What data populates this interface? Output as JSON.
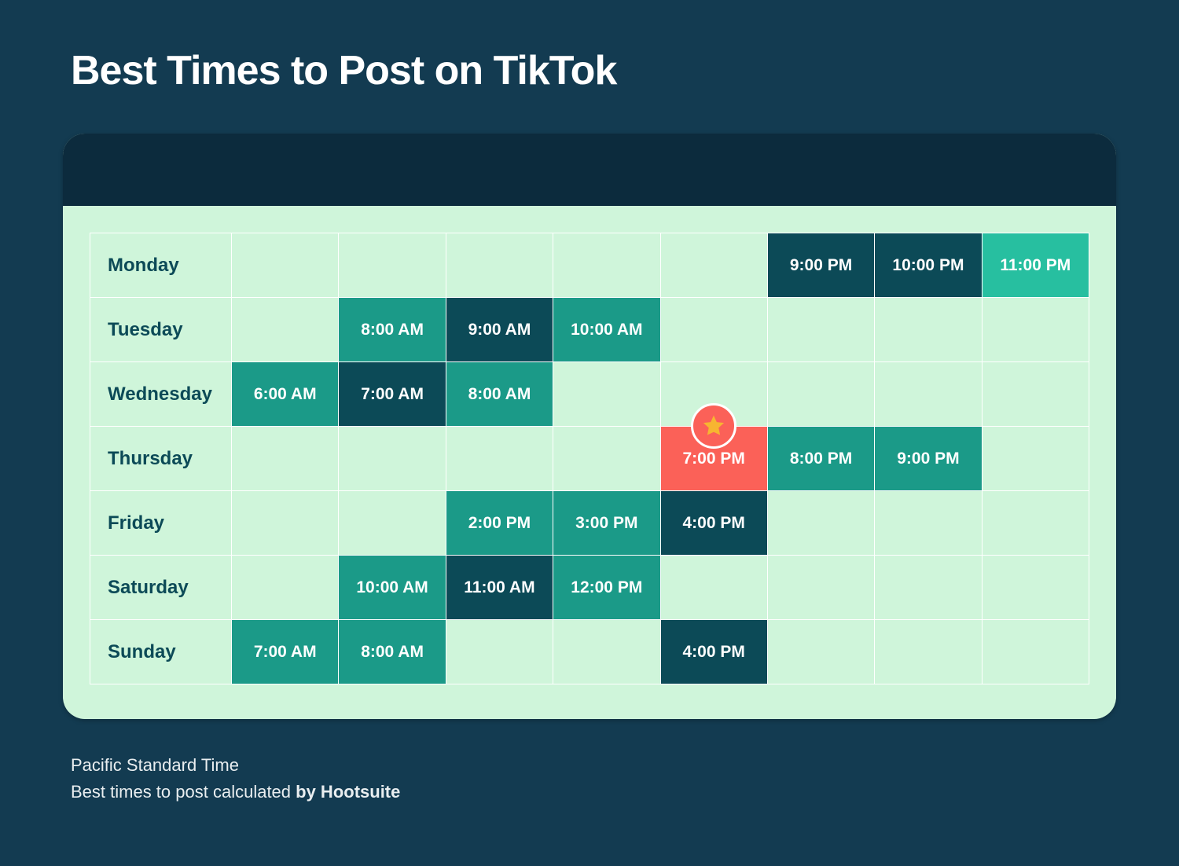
{
  "title": "Best Times to Post on TikTok",
  "footer": {
    "line1": "Pacific Standard Time",
    "line2_prefix": "Best times to post calculated ",
    "line2_strong": "by Hootsuite"
  },
  "colors": {
    "page_bg": "#133b51",
    "card_bg": "#cff5da",
    "card_band": "#0c2b3d",
    "grid_line": "#ffffff",
    "day_text": "#0c4a57",
    "time_text": "#ffffff",
    "cell_teal": "#1b9a88",
    "cell_navy": "#0c4a57",
    "cell_mint": "#27bfa0",
    "cell_highlight": "#fb6158",
    "star_fill": "#f7b531",
    "star_badge_bg": "#fb6158",
    "star_badge_border": "#ffffff",
    "footer_text": "#e9eef0",
    "title_text": "#ffffff"
  },
  "schedule": {
    "type": "table",
    "columns": 8,
    "days": [
      {
        "name": "Monday",
        "cells": [
          null,
          null,
          null,
          null,
          null,
          {
            "time": "9:00 PM",
            "fill": "cell_navy"
          },
          {
            "time": "10:00 PM",
            "fill": "cell_navy"
          },
          {
            "time": "11:00 PM",
            "fill": "cell_mint"
          }
        ]
      },
      {
        "name": "Tuesday",
        "cells": [
          null,
          {
            "time": "8:00 AM",
            "fill": "cell_teal"
          },
          {
            "time": "9:00 AM",
            "fill": "cell_navy"
          },
          {
            "time": "10:00 AM",
            "fill": "cell_teal"
          },
          null,
          null,
          null,
          null
        ]
      },
      {
        "name": "Wednesday",
        "cells": [
          {
            "time": "6:00 AM",
            "fill": "cell_teal"
          },
          {
            "time": "7:00 AM",
            "fill": "cell_navy"
          },
          {
            "time": "8:00 AM",
            "fill": "cell_teal"
          },
          null,
          null,
          null,
          null,
          null
        ]
      },
      {
        "name": "Thursday",
        "cells": [
          null,
          null,
          null,
          null,
          {
            "time": "7:00 PM",
            "fill": "cell_highlight",
            "star": true
          },
          {
            "time": "8:00 PM",
            "fill": "cell_teal"
          },
          {
            "time": "9:00 PM",
            "fill": "cell_teal"
          },
          null
        ]
      },
      {
        "name": "Friday",
        "cells": [
          null,
          null,
          {
            "time": "2:00 PM",
            "fill": "cell_teal"
          },
          {
            "time": "3:00 PM",
            "fill": "cell_teal"
          },
          {
            "time": "4:00 PM",
            "fill": "cell_navy"
          },
          null,
          null,
          null
        ]
      },
      {
        "name": "Saturday",
        "cells": [
          null,
          {
            "time": "10:00 AM",
            "fill": "cell_teal"
          },
          {
            "time": "11:00 AM",
            "fill": "cell_navy"
          },
          {
            "time": "12:00 PM",
            "fill": "cell_teal"
          },
          null,
          null,
          null,
          null
        ]
      },
      {
        "name": "Sunday",
        "cells": [
          {
            "time": "7:00 AM",
            "fill": "cell_teal"
          },
          {
            "time": "8:00 AM",
            "fill": "cell_teal"
          },
          null,
          null,
          {
            "time": "4:00 PM",
            "fill": "cell_navy"
          },
          null,
          null,
          null
        ]
      }
    ]
  }
}
